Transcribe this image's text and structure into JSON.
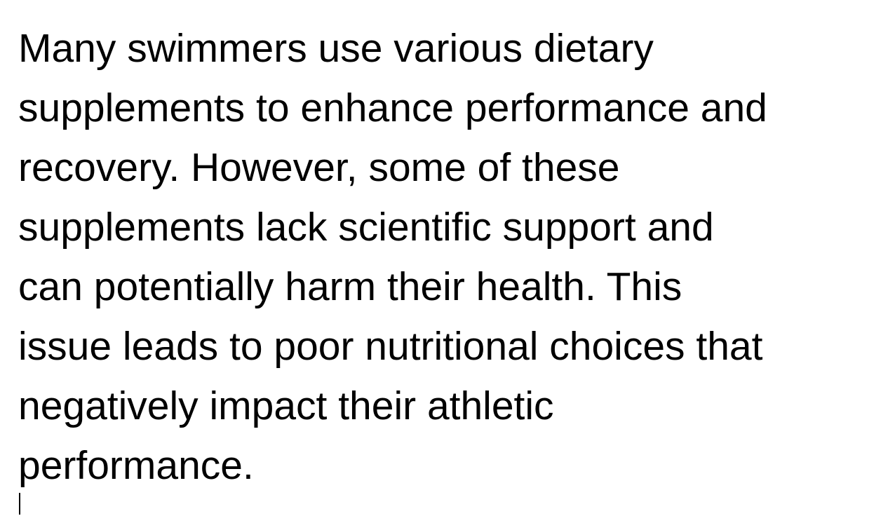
{
  "document": {
    "lines": [
      "Many swimmers use various dietary",
      "supplements to enhance performance and",
      "recovery. However, some of these",
      "supplements lack scientific support and",
      "can potentially harm their health. This",
      "issue leads to poor nutritional choices that",
      "negatively impact their athletic",
      "performance."
    ]
  },
  "colors": {
    "background": "#ffffff",
    "text": "#000000"
  }
}
